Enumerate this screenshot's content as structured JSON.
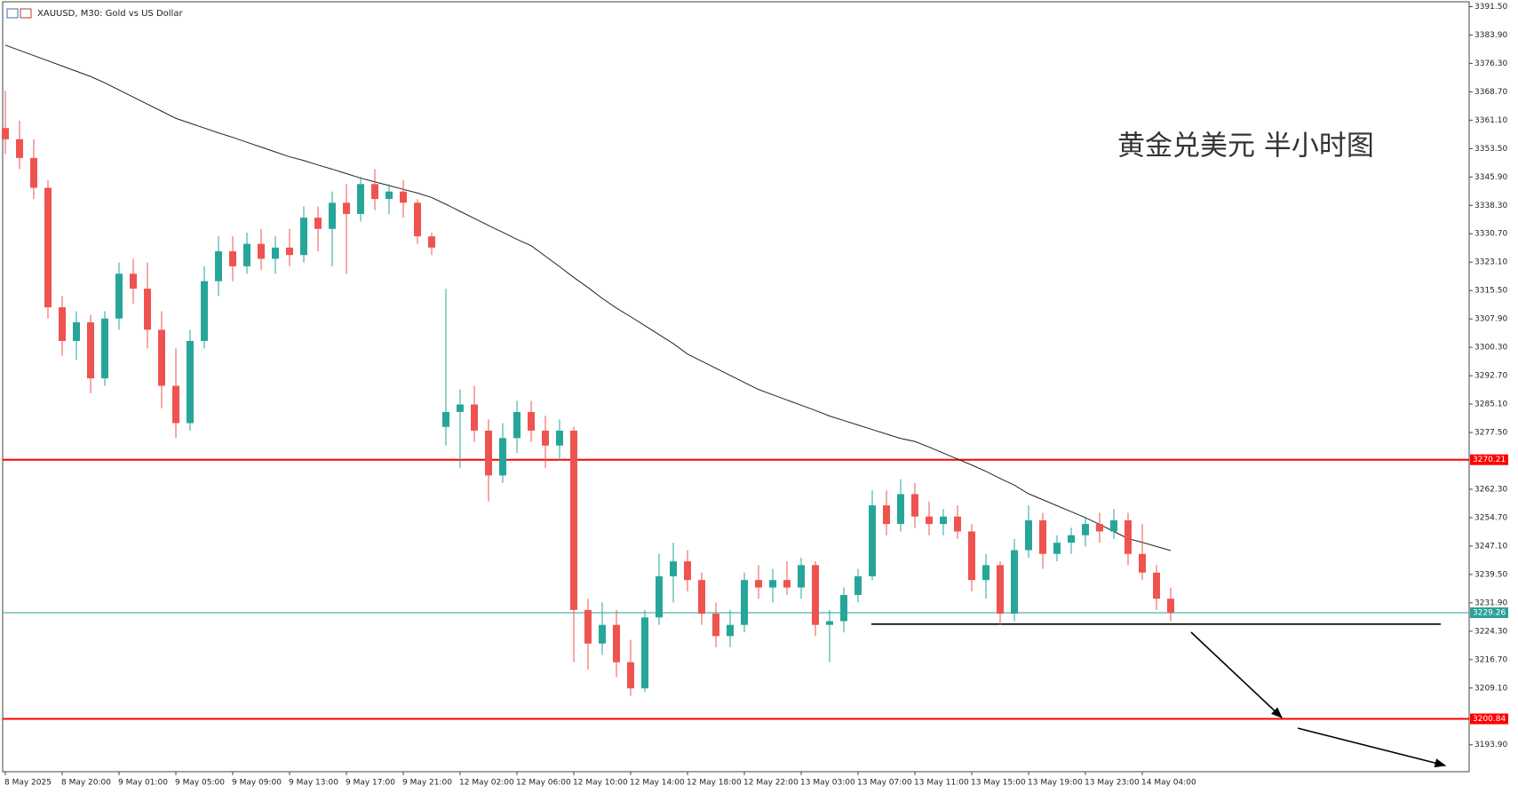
{
  "chart_data": {
    "type": "candlestick",
    "title": "XAUUSD, M30:  Gold vs US Dollar",
    "annotation": "黄金兑美元 半小时图",
    "categories": [
      "8 May 2025",
      null,
      null,
      null,
      "8 May 20:00",
      null,
      null,
      null,
      "9 May 01:00",
      null,
      null,
      null,
      "9 May 05:00",
      null,
      null,
      null,
      "9 May 09:00",
      null,
      null,
      null,
      "9 May 13:00",
      null,
      null,
      null,
      "9 May 17:00",
      null,
      null,
      null,
      "9 May 21:00",
      null,
      null,
      null,
      "12 May 02:00",
      null,
      null,
      null,
      "12 May 06:00",
      null,
      null,
      null,
      "12 May 10:00",
      null,
      null,
      null,
      "12 May 14:00",
      null,
      null,
      null,
      "12 May 18:00",
      null,
      null,
      null,
      "12 May 22:00",
      null,
      null,
      null,
      "13 May 03:00",
      null,
      null,
      null,
      "13 May 07:00",
      null,
      null,
      null,
      "13 May 11:00",
      null,
      null,
      null,
      "13 May 15:00",
      null,
      null,
      null,
      "13 May 19:00",
      null,
      null,
      null,
      "13 May 23:00",
      null,
      null,
      null,
      "14 May 04:00",
      null,
      null
    ],
    "open": [
      3359,
      3356,
      3351,
      3343,
      3311,
      3302,
      3307,
      3292,
      3308,
      3320,
      3316,
      3305,
      3290,
      3280,
      3302,
      3318,
      3326,
      3322,
      3328,
      3324,
      3327,
      3325,
      3335,
      3332,
      3339,
      3336,
      3344,
      3340,
      3342,
      3339,
      3330,
      3279,
      3283,
      3285,
      3278,
      3266,
      3276,
      3283,
      3278,
      3274,
      3278,
      3230,
      3221,
      3226,
      3216,
      3209,
      3228,
      3239,
      3243,
      3238,
      3229,
      3223,
      3226,
      3238,
      3236,
      3238,
      3236,
      3242,
      3226,
      3227,
      3234,
      3239,
      3258,
      3253,
      3261,
      3255,
      3253,
      3255,
      3251,
      3238,
      3242,
      3229,
      3246,
      3254,
      3245,
      3248,
      3250,
      3253,
      3251,
      3254,
      3245,
      3240,
      3233
    ],
    "high": [
      3369,
      3361,
      3356,
      3345,
      3314,
      3310,
      3309,
      3310,
      3323,
      3324,
      3323,
      3310,
      3300,
      3305,
      3322,
      3330,
      3330,
      3331,
      3332,
      3330,
      3332,
      3338,
      3338,
      3342,
      3344,
      3346,
      3348,
      3344,
      3345,
      3340,
      3331,
      3316,
      3289,
      3290,
      3281,
      3280,
      3286,
      3286,
      3282,
      3281,
      3279,
      3233,
      3232,
      3230,
      3222,
      3230,
      3245,
      3248,
      3246,
      3240,
      3232,
      3230,
      3240,
      3242,
      3241,
      3243,
      3244,
      3243,
      3230,
      3236,
      3241,
      3262,
      3262,
      3265,
      3264,
      3259,
      3257,
      3258,
      3253,
      3245,
      3243,
      3249,
      3258,
      3256,
      3250,
      3252,
      3255,
      3256,
      3257,
      3256,
      3253,
      3242,
      3236
    ],
    "low": [
      3352,
      3348,
      3340,
      3308,
      3298,
      3297,
      3288,
      3290,
      3305,
      3312,
      3300,
      3284,
      3276,
      3278,
      3300,
      3314,
      3318,
      3320,
      3321,
      3320,
      3322,
      3323,
      3326,
      3322,
      3320,
      3334,
      3337,
      3336,
      3335,
      3328,
      3325,
      3274,
      3268,
      3275,
      3259,
      3264,
      3272,
      3275,
      3268,
      3270,
      3216,
      3214,
      3218,
      3212,
      3207,
      3208,
      3226,
      3232,
      3235,
      3226,
      3220,
      3220,
      3224,
      3233,
      3232,
      3234,
      3233,
      3223,
      3216,
      3224,
      3232,
      3238,
      3250,
      3251,
      3252,
      3250,
      3250,
      3249,
      3235,
      3233,
      3226,
      3227,
      3244,
      3241,
      3243,
      3245,
      3247,
      3248,
      3249,
      3242,
      3238,
      3230,
      3227
    ],
    "close": [
      3356,
      3351,
      3343,
      3311,
      3302,
      3307,
      3292,
      3308,
      3320,
      3316,
      3305,
      3290,
      3280,
      3302,
      3318,
      3326,
      3322,
      3328,
      3324,
      3327,
      3325,
      3335,
      3332,
      3339,
      3336,
      3344,
      3340,
      3342,
      3339,
      3330,
      3327,
      3283,
      3285,
      3278,
      3266,
      3276,
      3283,
      3278,
      3274,
      3278,
      3230,
      3221,
      3226,
      3216,
      3209,
      3228,
      3239,
      3243,
      3238,
      3229,
      3223,
      3226,
      3238,
      3236,
      3238,
      3236,
      3242,
      3226,
      3227,
      3234,
      3239,
      3258,
      3253,
      3261,
      3255,
      3253,
      3255,
      3251,
      3238,
      3242,
      3229,
      3246,
      3254,
      3245,
      3248,
      3250,
      3253,
      3251,
      3254,
      3245,
      3240,
      3233,
      3229.26
    ],
    "up_color": "#26a69a",
    "down_color": "#ef5350",
    "ma": {
      "color": "#222222",
      "values": [
        3381.2,
        3379.8,
        3378.4,
        3377.0,
        3375.6,
        3374.2,
        3372.8,
        3371.1,
        3369.2,
        3367.3,
        3365.4,
        3363.5,
        3361.6,
        3360.3,
        3359.0,
        3357.7,
        3356.5,
        3355.2,
        3353.9,
        3352.6,
        3351.3,
        3350.3,
        3349.1,
        3348.0,
        3346.8,
        3345.6,
        3344.6,
        3343.6,
        3342.6,
        3341.6,
        3340.4,
        3338.6,
        3336.7,
        3334.8,
        3332.9,
        3331.1,
        3329.2,
        3327.5,
        3324.7,
        3321.9,
        3319.0,
        3316.3,
        3313.4,
        3310.8,
        3308.5,
        3306.1,
        3303.7,
        3301.3,
        3298.5,
        3296.6,
        3294.7,
        3292.8,
        3290.9,
        3289.0,
        3287.6,
        3286.2,
        3284.8,
        3283.4,
        3281.9,
        3280.7,
        3279.5,
        3278.3,
        3277.1,
        3275.9,
        3275.1,
        3273.6,
        3272.0,
        3270.4,
        3268.8,
        3267.1,
        3265.2,
        3263.4,
        3261.1,
        3259.5,
        3257.9,
        3256.3,
        3254.7,
        3252.9,
        3251.0,
        3249.1,
        3248.1,
        3247.0,
        3245.9
      ]
    },
    "levels": [
      {
        "value": 3270.21,
        "color": "#ff0000"
      },
      {
        "value": 3200.84,
        "color": "#ff0000"
      },
      {
        "value": 3229.26,
        "color": "#2aa198"
      }
    ],
    "support": {
      "value": 3226.2,
      "color": "#000000"
    },
    "ylim": [
      3186.7,
      3392.8
    ],
    "yticks": [
      {
        "value": 3391.5,
        "label": "3391.50"
      },
      {
        "value": 3383.9,
        "label": "3383.90"
      },
      {
        "value": 3376.3,
        "label": "3376.30"
      },
      {
        "value": 3368.7,
        "label": "3368.70"
      },
      {
        "value": 3361.1,
        "label": "3361.10"
      },
      {
        "value": 3353.5,
        "label": "3353.50"
      },
      {
        "value": 3345.9,
        "label": "3345.90"
      },
      {
        "value": 3338.3,
        "label": "3338.30"
      },
      {
        "value": 3330.7,
        "label": "3330.70"
      },
      {
        "value": 3323.1,
        "label": "3323.10"
      },
      {
        "value": 3315.5,
        "label": "3315.50"
      },
      {
        "value": 3307.9,
        "label": "3307.90"
      },
      {
        "value": 3300.3,
        "label": "3300.30"
      },
      {
        "value": 3292.7,
        "label": "3292.70"
      },
      {
        "value": 3285.1,
        "label": "3285.10"
      },
      {
        "value": 3277.5,
        "label": "3277.50"
      },
      {
        "value": 3262.3,
        "label": "3262.30"
      },
      {
        "value": 3254.7,
        "label": "3254.70"
      },
      {
        "value": 3247.1,
        "label": "3247.10"
      },
      {
        "value": 3239.5,
        "label": "3239.50"
      },
      {
        "value": 3231.9,
        "label": "3231.90"
      },
      {
        "value": 3224.3,
        "label": "3224.30"
      },
      {
        "value": 3216.7,
        "label": "3216.70"
      },
      {
        "value": 3209.1,
        "label": "3209.10"
      },
      {
        "value": 3193.9,
        "label": "3193.90"
      }
    ],
    "grid": false
  }
}
